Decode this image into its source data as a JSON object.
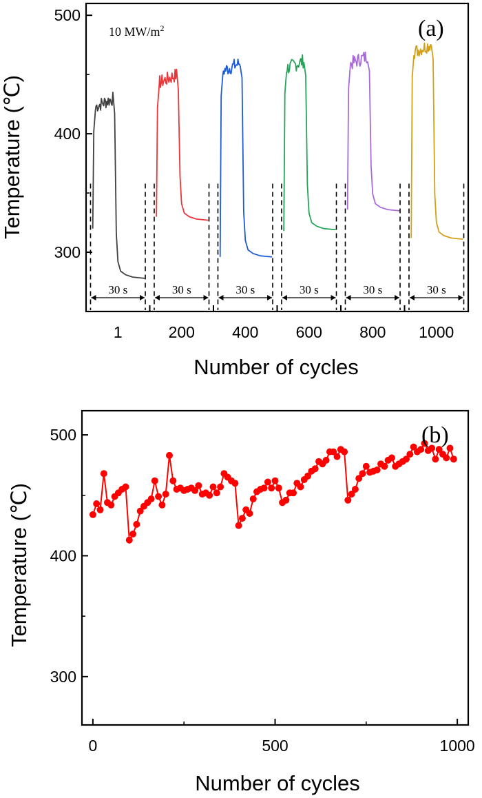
{
  "chart_data": [
    {
      "panel_label": "(a)",
      "type": "line",
      "annotation": "10 MW/m",
      "annotation_sup": "2",
      "xlabel": "Number of cycles",
      "ylabel": "Temperature (℃)",
      "ylim": [
        250,
        510
      ],
      "yticks": [
        300,
        400,
        500
      ],
      "categories": [
        "1",
        "200",
        "400",
        "600",
        "800",
        "1000"
      ],
      "duration_label": "30 s",
      "series": [
        {
          "category": "1",
          "color": "#404040",
          "start": 320,
          "peak": 432,
          "end": 278
        },
        {
          "category": "200",
          "color": "#e8373a",
          "start": 330,
          "peak": 452,
          "end": 327
        },
        {
          "category": "400",
          "color": "#1f5bd6",
          "start": 296,
          "peak": 462,
          "end": 296
        },
        {
          "category": "600",
          "color": "#27a35a",
          "start": 318,
          "peak": 464,
          "end": 319
        },
        {
          "category": "800",
          "color": "#a86bd9",
          "start": 336,
          "peak": 468,
          "end": 335
        },
        {
          "category": "1000",
          "color": "#d4a017",
          "start": 312,
          "peak": 478,
          "end": 311
        }
      ]
    },
    {
      "panel_label": "(b)",
      "type": "line",
      "xlabel": "Number of cycles",
      "ylabel": "Temperature (℃)",
      "xlim": [
        -30,
        1030
      ],
      "ylim": [
        260,
        520
      ],
      "xticks": [
        0,
        500,
        1000
      ],
      "yticks": [
        300,
        400,
        500
      ],
      "color": "#ff0000",
      "points": [
        [
          0,
          434
        ],
        [
          10,
          443
        ],
        [
          20,
          438
        ],
        [
          30,
          468
        ],
        [
          40,
          444
        ],
        [
          50,
          442
        ],
        [
          60,
          449
        ],
        [
          70,
          452
        ],
        [
          80,
          455
        ],
        [
          90,
          457
        ],
        [
          100,
          413
        ],
        [
          110,
          418
        ],
        [
          120,
          426
        ],
        [
          130,
          437
        ],
        [
          140,
          441
        ],
        [
          150,
          444
        ],
        [
          160,
          447
        ],
        [
          170,
          462
        ],
        [
          180,
          449
        ],
        [
          190,
          442
        ],
        [
          200,
          451
        ],
        [
          210,
          483
        ],
        [
          220,
          462
        ],
        [
          230,
          455
        ],
        [
          240,
          456
        ],
        [
          250,
          454
        ],
        [
          260,
          455
        ],
        [
          270,
          456
        ],
        [
          280,
          454
        ],
        [
          290,
          458
        ],
        [
          300,
          451
        ],
        [
          310,
          452
        ],
        [
          320,
          450
        ],
        [
          330,
          457
        ],
        [
          340,
          452
        ],
        [
          350,
          457
        ],
        [
          360,
          468
        ],
        [
          370,
          465
        ],
        [
          380,
          462
        ],
        [
          390,
          460
        ],
        [
          400,
          425
        ],
        [
          410,
          431
        ],
        [
          420,
          438
        ],
        [
          430,
          435
        ],
        [
          440,
          447
        ],
        [
          450,
          453
        ],
        [
          460,
          455
        ],
        [
          470,
          456
        ],
        [
          480,
          461
        ],
        [
          490,
          456
        ],
        [
          500,
          462
        ],
        [
          510,
          456
        ],
        [
          520,
          444
        ],
        [
          530,
          446
        ],
        [
          540,
          452
        ],
        [
          550,
          452
        ],
        [
          560,
          460
        ],
        [
          570,
          457
        ],
        [
          580,
          463
        ],
        [
          590,
          466
        ],
        [
          600,
          470
        ],
        [
          610,
          472
        ],
        [
          620,
          478
        ],
        [
          630,
          476
        ],
        [
          640,
          479
        ],
        [
          650,
          486
        ],
        [
          660,
          486
        ],
        [
          670,
          482
        ],
        [
          680,
          488
        ],
        [
          690,
          486
        ],
        [
          700,
          446
        ],
        [
          710,
          451
        ],
        [
          720,
          455
        ],
        [
          730,
          464
        ],
        [
          740,
          468
        ],
        [
          750,
          474
        ],
        [
          760,
          469
        ],
        [
          770,
          470
        ],
        [
          780,
          471
        ],
        [
          790,
          476
        ],
        [
          800,
          474
        ],
        [
          810,
          479
        ],
        [
          820,
          481
        ],
        [
          830,
          474
        ],
        [
          840,
          476
        ],
        [
          850,
          478
        ],
        [
          860,
          480
        ],
        [
          870,
          484
        ],
        [
          880,
          490
        ],
        [
          890,
          486
        ],
        [
          900,
          488
        ],
        [
          910,
          493
        ],
        [
          920,
          487
        ],
        [
          930,
          489
        ],
        [
          940,
          480
        ],
        [
          950,
          488
        ],
        [
          960,
          484
        ],
        [
          970,
          481
        ],
        [
          980,
          489
        ],
        [
          990,
          480
        ]
      ]
    }
  ]
}
